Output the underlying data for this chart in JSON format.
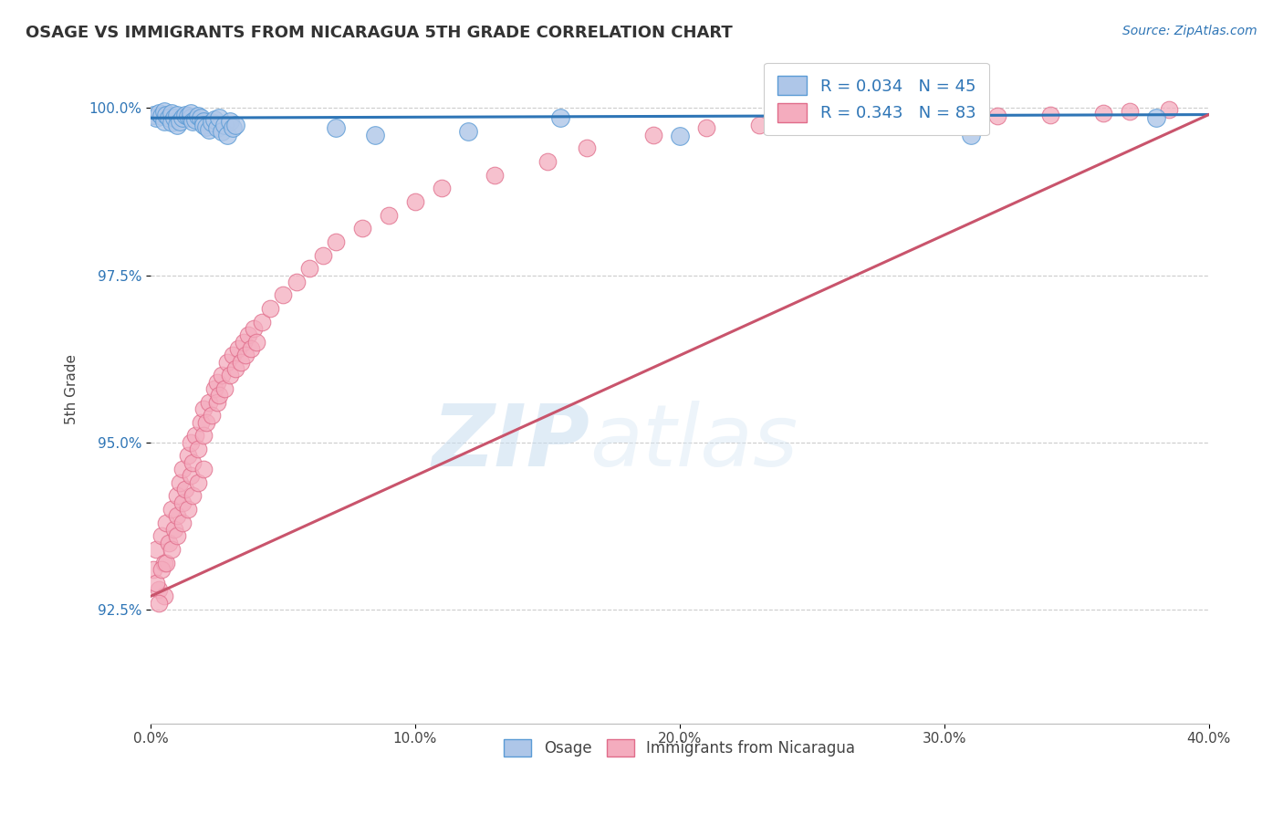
{
  "title": "OSAGE VS IMMIGRANTS FROM NICARAGUA 5TH GRADE CORRELATION CHART",
  "source_text": "Source: ZipAtlas.com",
  "ylabel": "5th Grade",
  "xlim": [
    0.0,
    0.4
  ],
  "ylim": [
    0.908,
    1.008
  ],
  "xtick_labels": [
    "0.0%",
    "10.0%",
    "20.0%",
    "30.0%",
    "40.0%"
  ],
  "xtick_vals": [
    0.0,
    0.1,
    0.2,
    0.3,
    0.4
  ],
  "ytick_labels": [
    "92.5%",
    "95.0%",
    "97.5%",
    "100.0%"
  ],
  "ytick_vals": [
    0.925,
    0.95,
    0.975,
    1.0
  ],
  "blue_color": "#AEC6E8",
  "blue_edge": "#5B9BD5",
  "pink_color": "#F4ACBE",
  "pink_edge": "#E06C8A",
  "trend_blue": "#2E75B6",
  "trend_pink": "#C9546C",
  "legend_R1": "R = 0.034",
  "legend_N1": "N = 45",
  "legend_R2": "R = 0.343",
  "legend_N2": "N = 83",
  "watermark_zip": "ZIP",
  "watermark_atlas": "atlas",
  "blue_x": [
    0.001,
    0.002,
    0.003,
    0.004,
    0.005,
    0.005,
    0.006,
    0.007,
    0.008,
    0.008,
    0.009,
    0.01,
    0.01,
    0.011,
    0.012,
    0.013,
    0.014,
    0.015,
    0.015,
    0.016,
    0.017,
    0.018,
    0.019,
    0.02,
    0.02,
    0.021,
    0.022,
    0.023,
    0.024,
    0.025,
    0.026,
    0.027,
    0.028,
    0.029,
    0.03,
    0.031,
    0.032,
    0.07,
    0.085,
    0.12,
    0.155,
    0.2,
    0.24,
    0.31,
    0.38
  ],
  "blue_y": [
    0.999,
    0.9985,
    0.9992,
    0.9988,
    0.9995,
    0.998,
    0.999,
    0.9985,
    0.9992,
    0.9978,
    0.9985,
    0.999,
    0.9975,
    0.998,
    0.9985,
    0.999,
    0.9988,
    0.9985,
    0.9992,
    0.998,
    0.9982,
    0.9988,
    0.9985,
    0.998,
    0.9975,
    0.9972,
    0.9968,
    0.9978,
    0.9982,
    0.997,
    0.9985,
    0.9965,
    0.9975,
    0.996,
    0.998,
    0.997,
    0.9975,
    0.997,
    0.996,
    0.9965,
    0.9985,
    0.9958,
    0.999,
    0.996,
    0.9985
  ],
  "pink_x": [
    0.001,
    0.002,
    0.003,
    0.004,
    0.005,
    0.006,
    0.007,
    0.008,
    0.009,
    0.01,
    0.01,
    0.011,
    0.012,
    0.012,
    0.013,
    0.014,
    0.015,
    0.015,
    0.016,
    0.017,
    0.018,
    0.019,
    0.02,
    0.02,
    0.021,
    0.022,
    0.023,
    0.024,
    0.025,
    0.025,
    0.026,
    0.027,
    0.028,
    0.029,
    0.03,
    0.031,
    0.032,
    0.033,
    0.034,
    0.035,
    0.036,
    0.037,
    0.038,
    0.039,
    0.04,
    0.042,
    0.045,
    0.05,
    0.055,
    0.06,
    0.065,
    0.07,
    0.08,
    0.09,
    0.1,
    0.11,
    0.13,
    0.15,
    0.165,
    0.19,
    0.21,
    0.23,
    0.24,
    0.26,
    0.28,
    0.295,
    0.32,
    0.34,
    0.36,
    0.37,
    0.385,
    0.005,
    0.002,
    0.003,
    0.004,
    0.006,
    0.008,
    0.01,
    0.012,
    0.014,
    0.016,
    0.018,
    0.02
  ],
  "pink_y": [
    0.931,
    0.934,
    0.928,
    0.936,
    0.932,
    0.938,
    0.935,
    0.94,
    0.937,
    0.942,
    0.939,
    0.944,
    0.941,
    0.946,
    0.943,
    0.948,
    0.945,
    0.95,
    0.947,
    0.951,
    0.949,
    0.953,
    0.951,
    0.955,
    0.953,
    0.956,
    0.954,
    0.958,
    0.956,
    0.959,
    0.957,
    0.96,
    0.958,
    0.962,
    0.96,
    0.963,
    0.961,
    0.964,
    0.962,
    0.965,
    0.963,
    0.966,
    0.964,
    0.967,
    0.965,
    0.968,
    0.97,
    0.972,
    0.974,
    0.976,
    0.978,
    0.98,
    0.982,
    0.984,
    0.986,
    0.988,
    0.99,
    0.992,
    0.994,
    0.996,
    0.997,
    0.9975,
    0.9978,
    0.998,
    0.9982,
    0.9985,
    0.9988,
    0.999,
    0.9992,
    0.9995,
    0.9998,
    0.927,
    0.929,
    0.926,
    0.931,
    0.932,
    0.934,
    0.936,
    0.938,
    0.94,
    0.942,
    0.944,
    0.946
  ],
  "blue_trend_x": [
    0.0,
    0.4
  ],
  "blue_trend_y": [
    0.9985,
    0.999
  ],
  "pink_trend_x": [
    0.0,
    0.4
  ],
  "pink_trend_y": [
    0.927,
    0.999
  ]
}
